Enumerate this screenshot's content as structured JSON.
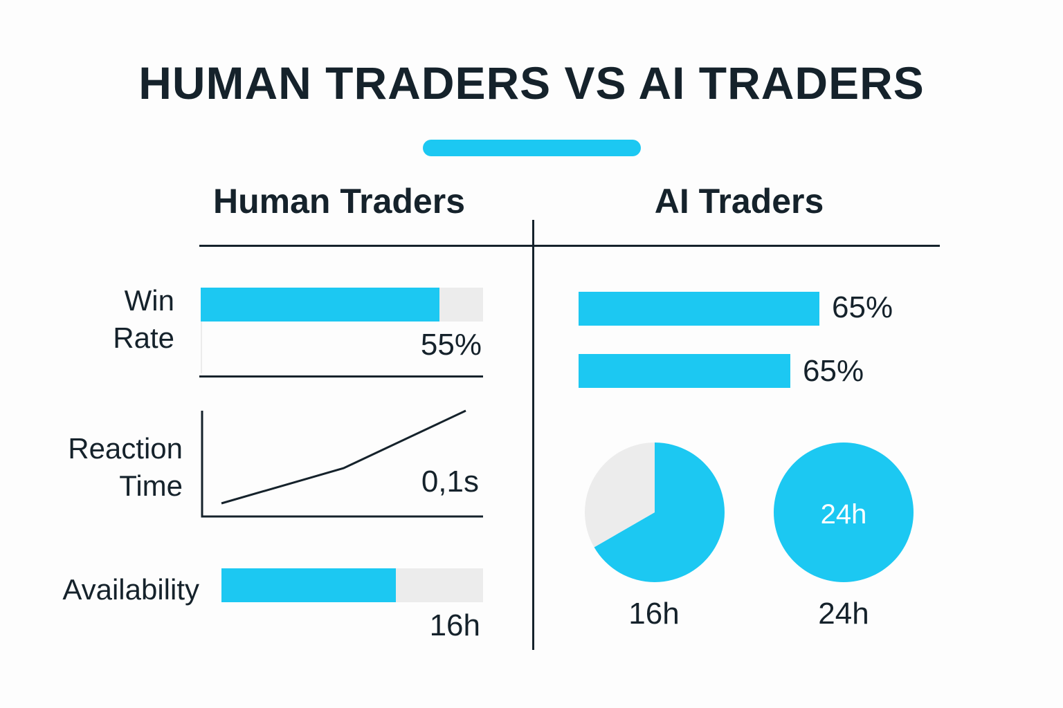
{
  "title": "HUMAN TRADERS VS AI TRADERS",
  "colors": {
    "accent": "#1cc8f2",
    "track": "#ececec",
    "ink": "#15222b"
  },
  "columns": {
    "human": "Human Traders",
    "ai": "AI Traders"
  },
  "labels": {
    "win_rate": "Win\nRate",
    "reaction_time": "Reaction\nTime",
    "availability": "Availability"
  },
  "chart_data": [
    {
      "type": "bar",
      "panel": "human",
      "metric": "Win Rate",
      "values": [
        55
      ],
      "value_label": "55%",
      "unit": "%",
      "max": 65
    },
    {
      "type": "line",
      "panel": "human",
      "metric": "Reaction Time",
      "value_label": "0,1s",
      "series": [
        {
          "points": [
            [
              0,
              0
            ],
            [
              0.5,
              0.38
            ],
            [
              1,
              1
            ]
          ]
        }
      ]
    },
    {
      "type": "bar",
      "panel": "human",
      "metric": "Availability",
      "values": [
        16
      ],
      "value_label": "16h",
      "unit": "h",
      "max": 24
    },
    {
      "type": "bar",
      "panel": "ai",
      "values": [
        65,
        65
      ],
      "value_labels": [
        "65%",
        "65%"
      ],
      "unit": "%"
    },
    {
      "type": "pie",
      "panel": "ai",
      "slices": [
        {
          "label": "16h",
          "value": 16
        },
        {
          "label": "",
          "value": 8
        }
      ],
      "caption": "16h"
    },
    {
      "type": "pie",
      "panel": "ai",
      "slices": [
        {
          "label": "24h",
          "value": 24
        }
      ],
      "center_label": "24h",
      "caption": "24h"
    }
  ]
}
